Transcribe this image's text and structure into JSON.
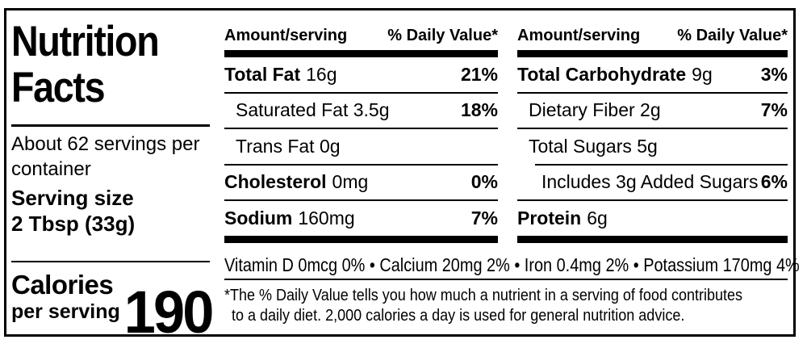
{
  "colors": {
    "text": "#000000",
    "background": "#ffffff"
  },
  "title": "Nutrition Facts",
  "left": {
    "servings_text": "About 62 servings per container",
    "serving_size_label": "Serving size",
    "serving_size_value": "2 Tbsp (33g)",
    "calories_label": "Calories",
    "calories_sublabel": "per serving",
    "calories_value": "190"
  },
  "panels": [
    {
      "amount_header": "Amount/serving",
      "dv_header": "% Daily Value*",
      "rows": [
        {
          "bold": "Total Fat",
          "reg": "16g",
          "dv": "21%"
        },
        {
          "bold": "",
          "reg": "Saturated Fat 3.5g",
          "dv": "18%"
        },
        {
          "bold": "",
          "reg": "Trans Fat 0g",
          "dv": ""
        },
        {
          "bold": "Cholesterol",
          "reg": "0mg",
          "dv": "0%"
        },
        {
          "bold": "Sodium",
          "reg": "160mg",
          "dv": "7%"
        }
      ]
    },
    {
      "amount_header": "Amount/serving",
      "dv_header": "% Daily Value*",
      "rows": [
        {
          "bold": "Total Carbohydrate",
          "reg": "9g",
          "dv": "3%"
        },
        {
          "bold": "",
          "reg": "Dietary Fiber 2g",
          "dv": "7%"
        },
        {
          "bold": "",
          "reg": "Total Sugars 5g",
          "dv": ""
        },
        {
          "bold": "",
          "reg": "Includes 3g Added Sugars",
          "dv": "6%"
        },
        {
          "bold": "Protein",
          "reg": "6g",
          "dv": ""
        }
      ]
    }
  ],
  "micronutrients": "Vitamin D 0mcg 0% • Calcium 20mg 2% • Iron 0.4mg 2% • Potassium 170mg 4%",
  "footnote_lines": [
    "*The % Daily Value tells you how much a nutrient in a serving of food contributes",
    "to a daily diet. 2,000 calories a day is used for general nutrition advice."
  ]
}
